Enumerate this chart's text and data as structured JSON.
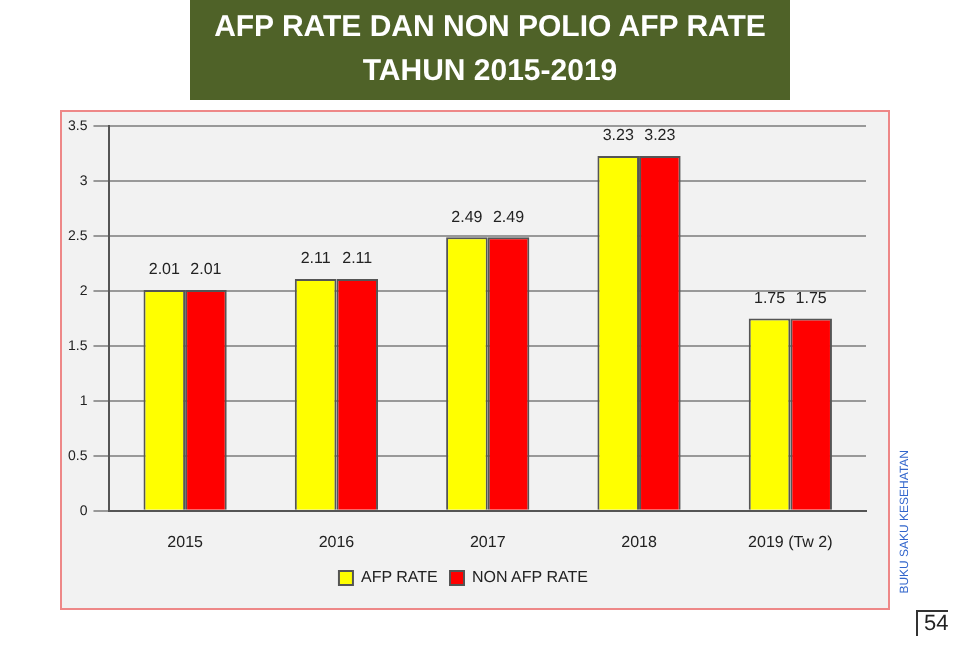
{
  "chart_data": {
    "type": "bar",
    "title": "AFP RATE DAN NON POLIO AFP RATE\nTAHUN 2015-2019",
    "categories": [
      "2015",
      "2016",
      "2017",
      "2018",
      "2019 (Tw 2)"
    ],
    "series": [
      {
        "name": "AFP RATE",
        "color": "#ffff00",
        "values": [
          2.01,
          2.11,
          2.49,
          3.23,
          1.75
        ]
      },
      {
        "name": "NON AFP RATE",
        "color": "#ff0000",
        "values": [
          2.01,
          2.11,
          2.49,
          3.23,
          1.75
        ]
      }
    ],
    "ylim": [
      0,
      3.5
    ],
    "yticks": [
      0,
      0.5,
      1,
      1.5,
      2,
      2.5,
      3,
      3.5
    ],
    "grid": "y",
    "legend": "bottom",
    "data_labels": true,
    "annotations": [
      "BUKU SAKU KESEHATAN",
      "54"
    ]
  }
}
